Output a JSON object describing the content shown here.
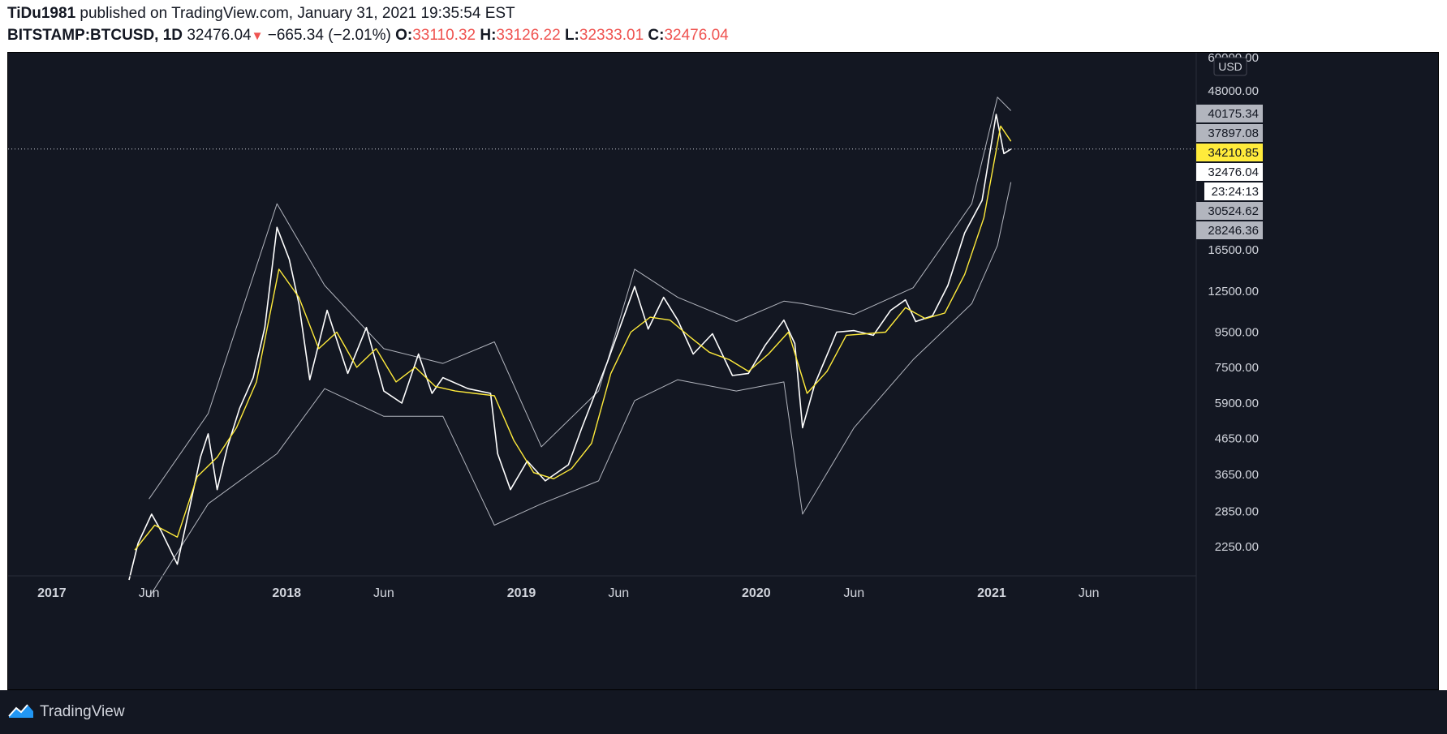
{
  "header": {
    "author": "TiDu1981",
    "published_text": "published on TradingView.com, January 31, 2021 19:35:54 EST",
    "symbol": "BITSTAMP:BTCUSD, 1D",
    "last": "32476.04",
    "change": "−665.34 (−2.01%)",
    "o_label": "O:",
    "o_value": "33110.32",
    "h_label": "H:",
    "h_value": "33126.22",
    "l_label": "L:",
    "l_value": "32333.01",
    "c_label": "C:",
    "c_value": "32476.04"
  },
  "footer": {
    "brand": "TradingView"
  },
  "colors": {
    "background": "#131722",
    "price": "#ffffff",
    "envelope": "#b2b5be",
    "ma": "#ffeb3b",
    "up": "#26a69a",
    "down": "#ef5350"
  },
  "chart_data": {
    "type": "line",
    "scale": "log",
    "currency": "USD",
    "ylim": [
      1850,
      62000
    ],
    "y_ticks": [
      "60000.00",
      "48000.00",
      "16500.00",
      "12500.00",
      "9500.00",
      "7500.00",
      "5900.00",
      "4650.00",
      "3650.00",
      "2850.00",
      "2250.00"
    ],
    "x_ticks": [
      {
        "label": "2017",
        "date": "2017-01-01"
      },
      {
        "label": "Jun",
        "date": "2017-06-01"
      },
      {
        "label": "2018",
        "date": "2018-01-01"
      },
      {
        "label": "Jun",
        "date": "2018-06-01"
      },
      {
        "label": "2019",
        "date": "2019-01-01"
      },
      {
        "label": "Jun",
        "date": "2019-06-01"
      },
      {
        "label": "2020",
        "date": "2020-01-01"
      },
      {
        "label": "Jun",
        "date": "2020-06-01"
      },
      {
        "label": "2021",
        "date": "2021-01-01"
      },
      {
        "label": "Jun",
        "date": "2021-06-01"
      }
    ],
    "price_labels": [
      {
        "value": "40175.34",
        "style": "gray"
      },
      {
        "value": "37897.08",
        "style": "gray"
      },
      {
        "value": "34210.85",
        "style": "yellow"
      },
      {
        "value": "32476.04",
        "style": "white"
      },
      {
        "value": "23:24:13",
        "style": "white"
      },
      {
        "value": "30524.62",
        "style": "gray"
      },
      {
        "value": "28246.36",
        "style": "gray"
      }
    ],
    "current_price": 32476.04,
    "series": [
      {
        "style": "price",
        "x": [
          "2017-05-01",
          "2017-05-15",
          "2017-06-05",
          "2017-06-20",
          "2017-07-15",
          "2017-08-01",
          "2017-08-20",
          "2017-09-01",
          "2017-09-15",
          "2017-10-01",
          "2017-10-20",
          "2017-11-10",
          "2017-11-28",
          "2017-12-17",
          "2018-01-05",
          "2018-01-20",
          "2018-02-06",
          "2018-03-05",
          "2018-04-06",
          "2018-05-05",
          "2018-06-01",
          "2018-06-29",
          "2018-07-25",
          "2018-08-15",
          "2018-09-01",
          "2018-10-10",
          "2018-11-14",
          "2018-11-25",
          "2018-12-15",
          "2019-01-10",
          "2019-02-07",
          "2019-03-15",
          "2019-04-05",
          "2019-05-15",
          "2019-06-26",
          "2019-07-17",
          "2019-08-10",
          "2019-09-01",
          "2019-09-25",
          "2019-10-25",
          "2019-11-25",
          "2019-12-20",
          "2020-01-15",
          "2020-02-13",
          "2020-03-01",
          "2020-03-13",
          "2020-04-01",
          "2020-05-05",
          "2020-06-01",
          "2020-07-01",
          "2020-07-28",
          "2020-08-20",
          "2020-09-05",
          "2020-10-01",
          "2020-10-25",
          "2020-11-20",
          "2020-12-17",
          "2021-01-08",
          "2021-01-20",
          "2021-01-31"
        ],
        "y": [
          1800,
          2300,
          2800,
          2500,
          2000,
          2800,
          4100,
          4800,
          3300,
          4400,
          5700,
          7000,
          9800,
          19200,
          15500,
          11500,
          6900,
          11000,
          7200,
          9800,
          6400,
          5900,
          8200,
          6300,
          7000,
          6500,
          6300,
          4200,
          3300,
          4000,
          3500,
          3900,
          5000,
          7800,
          12900,
          9700,
          12000,
          10300,
          8200,
          9400,
          7100,
          7200,
          8700,
          10300,
          8800,
          5000,
          6700,
          9500,
          9600,
          9300,
          11000,
          11800,
          10200,
          10600,
          13000,
          18500,
          23000,
          41000,
          31500,
          32476
        ]
      },
      {
        "style": "ma",
        "x": [
          "2017-05-10",
          "2017-06-10",
          "2017-07-15",
          "2017-08-15",
          "2017-09-15",
          "2017-10-15",
          "2017-11-15",
          "2017-12-20",
          "2018-01-20",
          "2018-02-20",
          "2018-03-20",
          "2018-04-20",
          "2018-05-20",
          "2018-06-20",
          "2018-07-20",
          "2018-08-20",
          "2018-09-20",
          "2018-10-20",
          "2018-11-20",
          "2018-12-20",
          "2019-01-20",
          "2019-02-20",
          "2019-03-20",
          "2019-04-20",
          "2019-05-20",
          "2019-06-20",
          "2019-07-20",
          "2019-08-20",
          "2019-09-20",
          "2019-10-20",
          "2019-11-20",
          "2019-12-20",
          "2020-01-20",
          "2020-02-20",
          "2020-03-20",
          "2020-04-20",
          "2020-05-20",
          "2020-06-20",
          "2020-07-20",
          "2020-08-20",
          "2020-09-20",
          "2020-10-20",
          "2020-11-20",
          "2020-12-20",
          "2021-01-15",
          "2021-01-31"
        ],
        "y": [
          2200,
          2600,
          2400,
          3600,
          4100,
          5000,
          6800,
          14500,
          12000,
          8500,
          9500,
          7500,
          8500,
          6800,
          7500,
          6600,
          6400,
          6300,
          6200,
          4600,
          3700,
          3550,
          3800,
          4500,
          7200,
          9500,
          10500,
          10300,
          9200,
          8300,
          7900,
          7300,
          8200,
          9500,
          6300,
          7300,
          9300,
          9400,
          9500,
          11200,
          10400,
          10800,
          14000,
          20500,
          37900,
          34210
        ]
      },
      {
        "style": "envelope",
        "x": [
          "2017-06-01",
          "2017-09-01",
          "2017-12-17",
          "2018-03-01",
          "2018-06-01",
          "2018-09-01",
          "2018-11-20",
          "2019-02-01",
          "2019-05-01",
          "2019-06-26",
          "2019-09-01",
          "2019-12-01",
          "2020-02-13",
          "2020-03-13",
          "2020-06-01",
          "2020-09-01",
          "2020-12-01",
          "2021-01-10",
          "2021-01-31"
        ],
        "y": [
          3100,
          5500,
          22500,
          13000,
          8500,
          7700,
          8900,
          4400,
          6400,
          14500,
          12000,
          10200,
          11700,
          11500,
          10700,
          12800,
          22500,
          46000,
          42000
        ]
      },
      {
        "style": "envelope",
        "x": [
          "2017-06-01",
          "2017-09-01",
          "2017-12-17",
          "2018-03-01",
          "2018-06-01",
          "2018-09-01",
          "2018-11-20",
          "2019-02-01",
          "2019-05-01",
          "2019-06-26",
          "2019-09-01",
          "2019-12-01",
          "2020-02-13",
          "2020-03-13",
          "2020-06-01",
          "2020-09-01",
          "2020-12-01",
          "2021-01-10",
          "2021-01-31"
        ],
        "y": [
          1600,
          3000,
          4200,
          6500,
          5400,
          5400,
          2600,
          3000,
          3500,
          6000,
          6900,
          6400,
          6800,
          2800,
          5000,
          7900,
          11500,
          17000,
          26000
        ]
      }
    ]
  }
}
